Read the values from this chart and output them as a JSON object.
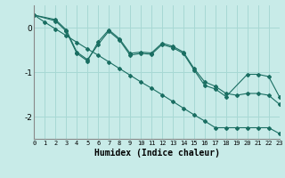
{
  "xlabel": "Humidex (Indice chaleur)",
  "background_color": "#c8ebe8",
  "grid_color": "#a8d8d4",
  "line_color": "#1a6e62",
  "xlim": [
    0,
    23
  ],
  "ylim": [
    -2.5,
    0.5
  ],
  "yticks": [
    0,
    -1,
    -2
  ],
  "xticks": [
    0,
    1,
    2,
    3,
    4,
    5,
    6,
    7,
    8,
    9,
    10,
    11,
    12,
    13,
    14,
    15,
    16,
    17,
    18,
    19,
    20,
    21,
    22,
    23
  ],
  "series1_x": [
    0,
    1,
    2,
    3,
    4,
    5,
    6,
    7,
    8,
    9,
    10,
    11,
    12,
    13,
    14,
    15,
    16,
    17,
    18,
    19,
    20,
    21,
    22,
    23
  ],
  "series1_y": [
    0.28,
    0.12,
    -0.03,
    -0.18,
    -0.33,
    -0.48,
    -0.62,
    -0.77,
    -0.92,
    -1.07,
    -1.22,
    -1.36,
    -1.51,
    -1.66,
    -1.81,
    -1.96,
    -2.1,
    -2.25,
    -2.25,
    -2.25,
    -2.25,
    -2.25,
    -2.25,
    -2.38
  ],
  "series2_x": [
    0,
    2,
    3,
    4,
    5,
    6,
    7,
    8,
    9,
    10,
    11,
    12,
    13,
    14,
    15,
    16,
    17,
    18,
    20,
    21,
    22,
    23
  ],
  "series2_y": [
    0.28,
    0.18,
    -0.05,
    -0.55,
    -0.72,
    -0.38,
    -0.08,
    -0.28,
    -0.62,
    -0.58,
    -0.6,
    -0.38,
    -0.45,
    -0.58,
    -0.95,
    -1.3,
    -1.38,
    -1.55,
    -1.05,
    -1.05,
    -1.1,
    -1.55
  ],
  "series3_x": [
    0,
    2,
    3,
    4,
    5,
    6,
    7,
    8,
    9,
    10,
    11,
    12,
    13,
    14,
    15,
    16,
    17,
    18,
    19,
    20,
    21,
    22,
    23
  ],
  "series3_y": [
    0.28,
    0.15,
    -0.08,
    -0.58,
    -0.75,
    -0.32,
    -0.05,
    -0.25,
    -0.58,
    -0.55,
    -0.57,
    -0.35,
    -0.42,
    -0.55,
    -0.92,
    -1.22,
    -1.32,
    -1.48,
    -1.52,
    -1.48,
    -1.48,
    -1.52,
    -1.72
  ]
}
